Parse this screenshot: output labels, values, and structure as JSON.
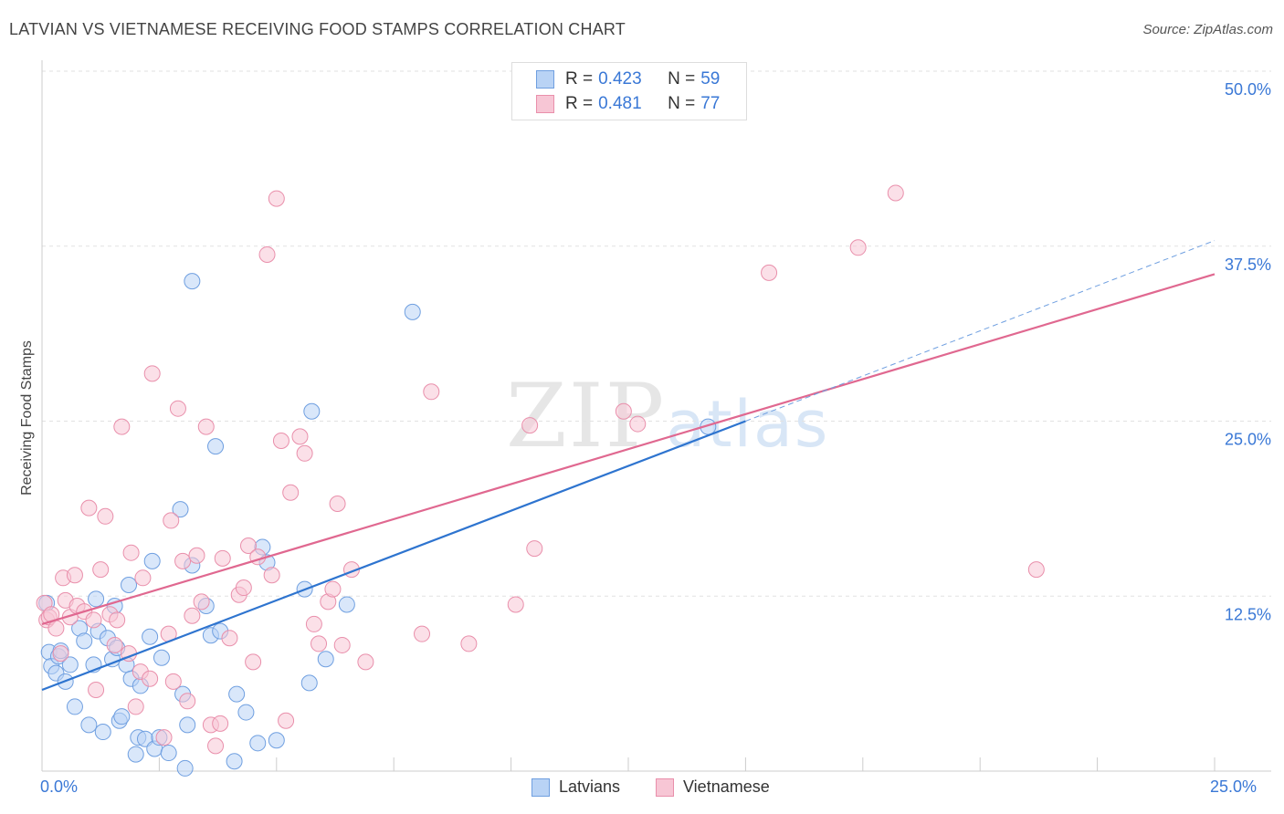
{
  "header": {
    "title": "LATVIAN VS VIETNAMESE RECEIVING FOOD STAMPS CORRELATION CHART",
    "source": "Source: ZipAtlas.com"
  },
  "watermark": {
    "zip": "ZIP",
    "atlas": "atlas"
  },
  "legend_top": {
    "rows": [
      {
        "r_label": "R =",
        "r_value": "0.423",
        "n_label": "N =",
        "n_value": "59"
      },
      {
        "r_label": "R =",
        "r_value": "0.481",
        "n_label": "N =",
        "n_value": "77"
      }
    ]
  },
  "legend_bottom": {
    "latvians": "Latvians",
    "vietnamese": "Vietnamese"
  },
  "axis": {
    "x_min_label": "0.0%",
    "x_max_label": "25.0%"
  },
  "colors": {
    "latvian_fill": "#b9d3f5",
    "latvian_stroke": "#6f9fe0",
    "latvian_line": "#2e74cf",
    "viet_fill": "#f7c6d5",
    "viet_stroke": "#e98fab",
    "viet_line": "#e06890",
    "tick_text": "#3a78d6",
    "grid": "#e2e2e2"
  },
  "chart_data": {
    "type": "scatter",
    "title": "LATVIAN VS VIETNAMESE RECEIVING FOOD STAMPS CORRELATION CHART",
    "xlabel": "",
    "ylabel": "Receiving Food Stamps",
    "xlim": [
      0,
      25
    ],
    "ylim": [
      0,
      50
    ],
    "y_ticks": [
      {
        "value": 12.5,
        "label": "12.5%"
      },
      {
        "value": 25.0,
        "label": "25.0%"
      },
      {
        "value": 37.5,
        "label": "37.5%"
      },
      {
        "value": 50.0,
        "label": "50.0%"
      }
    ],
    "x_ticks": [
      0,
      2.5,
      5,
      7.5,
      10,
      12.5,
      15,
      17.5,
      20,
      22.5,
      25
    ],
    "series": [
      {
        "name": "Latvians",
        "r": 0.423,
        "n": 59,
        "trend": {
          "x0": 0,
          "y0": 5.8,
          "x1": 15,
          "y1": 25.0
        },
        "trend_extension": {
          "x0": 15,
          "y0": 25.0,
          "x1": 25,
          "y1": 37.9
        },
        "points": [
          [
            0.1,
            12.0
          ],
          [
            0.15,
            8.5
          ],
          [
            0.2,
            7.5
          ],
          [
            0.3,
            7.0
          ],
          [
            0.35,
            8.2
          ],
          [
            0.4,
            8.6
          ],
          [
            0.5,
            6.4
          ],
          [
            0.6,
            7.6
          ],
          [
            0.7,
            4.6
          ],
          [
            0.8,
            10.2
          ],
          [
            0.9,
            9.3
          ],
          [
            1.0,
            3.3
          ],
          [
            1.1,
            7.6
          ],
          [
            1.15,
            12.3
          ],
          [
            1.2,
            10.0
          ],
          [
            1.3,
            2.8
          ],
          [
            1.4,
            9.5
          ],
          [
            1.5,
            8.0
          ],
          [
            1.55,
            11.8
          ],
          [
            1.6,
            8.8
          ],
          [
            1.65,
            3.6
          ],
          [
            1.7,
            3.9
          ],
          [
            1.8,
            7.6
          ],
          [
            1.85,
            13.3
          ],
          [
            1.9,
            6.6
          ],
          [
            2.0,
            1.2
          ],
          [
            2.05,
            2.4
          ],
          [
            2.1,
            6.1
          ],
          [
            2.2,
            2.3
          ],
          [
            2.3,
            9.6
          ],
          [
            2.35,
            15.0
          ],
          [
            2.4,
            1.6
          ],
          [
            2.5,
            2.4
          ],
          [
            2.55,
            8.1
          ],
          [
            2.7,
            1.3
          ],
          [
            2.95,
            18.7
          ],
          [
            3.0,
            5.5
          ],
          [
            3.05,
            0.2
          ],
          [
            3.1,
            3.3
          ],
          [
            3.2,
            14.7
          ],
          [
            3.5,
            11.8
          ],
          [
            3.6,
            9.7
          ],
          [
            3.7,
            23.2
          ],
          [
            3.8,
            10.0
          ],
          [
            4.1,
            0.7
          ],
          [
            4.15,
            5.5
          ],
          [
            4.35,
            4.2
          ],
          [
            4.6,
            2.0
          ],
          [
            4.7,
            16.0
          ],
          [
            5.0,
            2.2
          ],
          [
            5.6,
            13.0
          ],
          [
            5.7,
            6.3
          ],
          [
            5.75,
            25.7
          ],
          [
            6.05,
            8.0
          ],
          [
            6.5,
            11.9
          ],
          [
            7.9,
            32.8
          ],
          [
            14.2,
            24.6
          ],
          [
            3.2,
            35.0
          ],
          [
            4.8,
            14.9
          ]
        ]
      },
      {
        "name": "Vietnamese",
        "r": 0.481,
        "n": 77,
        "trend": {
          "x0": 0,
          "y0": 10.5,
          "x1": 25,
          "y1": 35.5
        },
        "points": [
          [
            0.05,
            12.0
          ],
          [
            0.1,
            10.8
          ],
          [
            0.15,
            11.0
          ],
          [
            0.2,
            11.2
          ],
          [
            0.3,
            10.2
          ],
          [
            0.4,
            8.4
          ],
          [
            0.45,
            13.8
          ],
          [
            0.5,
            12.2
          ],
          [
            0.6,
            11.0
          ],
          [
            0.7,
            14.0
          ],
          [
            0.75,
            11.8
          ],
          [
            0.9,
            11.4
          ],
          [
            1.0,
            18.8
          ],
          [
            1.1,
            10.8
          ],
          [
            1.15,
            5.8
          ],
          [
            1.25,
            14.4
          ],
          [
            1.35,
            18.2
          ],
          [
            1.45,
            11.2
          ],
          [
            1.55,
            9.0
          ],
          [
            1.6,
            10.8
          ],
          [
            1.7,
            24.6
          ],
          [
            1.85,
            8.4
          ],
          [
            1.9,
            15.6
          ],
          [
            2.0,
            4.6
          ],
          [
            2.1,
            7.1
          ],
          [
            2.15,
            13.8
          ],
          [
            2.3,
            6.6
          ],
          [
            2.35,
            28.4
          ],
          [
            2.6,
            2.4
          ],
          [
            2.7,
            9.8
          ],
          [
            2.75,
            17.9
          ],
          [
            2.8,
            6.4
          ],
          [
            2.9,
            25.9
          ],
          [
            3.0,
            15.0
          ],
          [
            3.1,
            5.0
          ],
          [
            3.2,
            11.1
          ],
          [
            3.3,
            15.4
          ],
          [
            3.4,
            12.1
          ],
          [
            3.5,
            24.6
          ],
          [
            3.6,
            3.3
          ],
          [
            3.7,
            1.8
          ],
          [
            3.8,
            3.4
          ],
          [
            3.85,
            15.2
          ],
          [
            4.0,
            9.5
          ],
          [
            4.2,
            12.6
          ],
          [
            4.3,
            13.1
          ],
          [
            4.4,
            16.1
          ],
          [
            4.5,
            7.8
          ],
          [
            4.6,
            15.3
          ],
          [
            4.8,
            36.9
          ],
          [
            4.9,
            14.0
          ],
          [
            5.0,
            40.9
          ],
          [
            5.1,
            23.6
          ],
          [
            5.2,
            3.6
          ],
          [
            5.3,
            19.9
          ],
          [
            5.5,
            23.9
          ],
          [
            5.6,
            22.7
          ],
          [
            5.8,
            10.5
          ],
          [
            5.9,
            9.1
          ],
          [
            6.1,
            12.1
          ],
          [
            6.2,
            13.0
          ],
          [
            6.3,
            19.1
          ],
          [
            6.4,
            9.0
          ],
          [
            6.6,
            14.4
          ],
          [
            6.9,
            7.8
          ],
          [
            8.1,
            9.8
          ],
          [
            8.3,
            27.1
          ],
          [
            9.1,
            9.1
          ],
          [
            10.1,
            11.9
          ],
          [
            10.4,
            24.7
          ],
          [
            10.5,
            15.9
          ],
          [
            12.4,
            25.7
          ],
          [
            12.7,
            24.8
          ],
          [
            15.5,
            35.6
          ],
          [
            17.4,
            37.4
          ],
          [
            18.2,
            41.3
          ],
          [
            21.2,
            14.4
          ]
        ]
      }
    ]
  }
}
